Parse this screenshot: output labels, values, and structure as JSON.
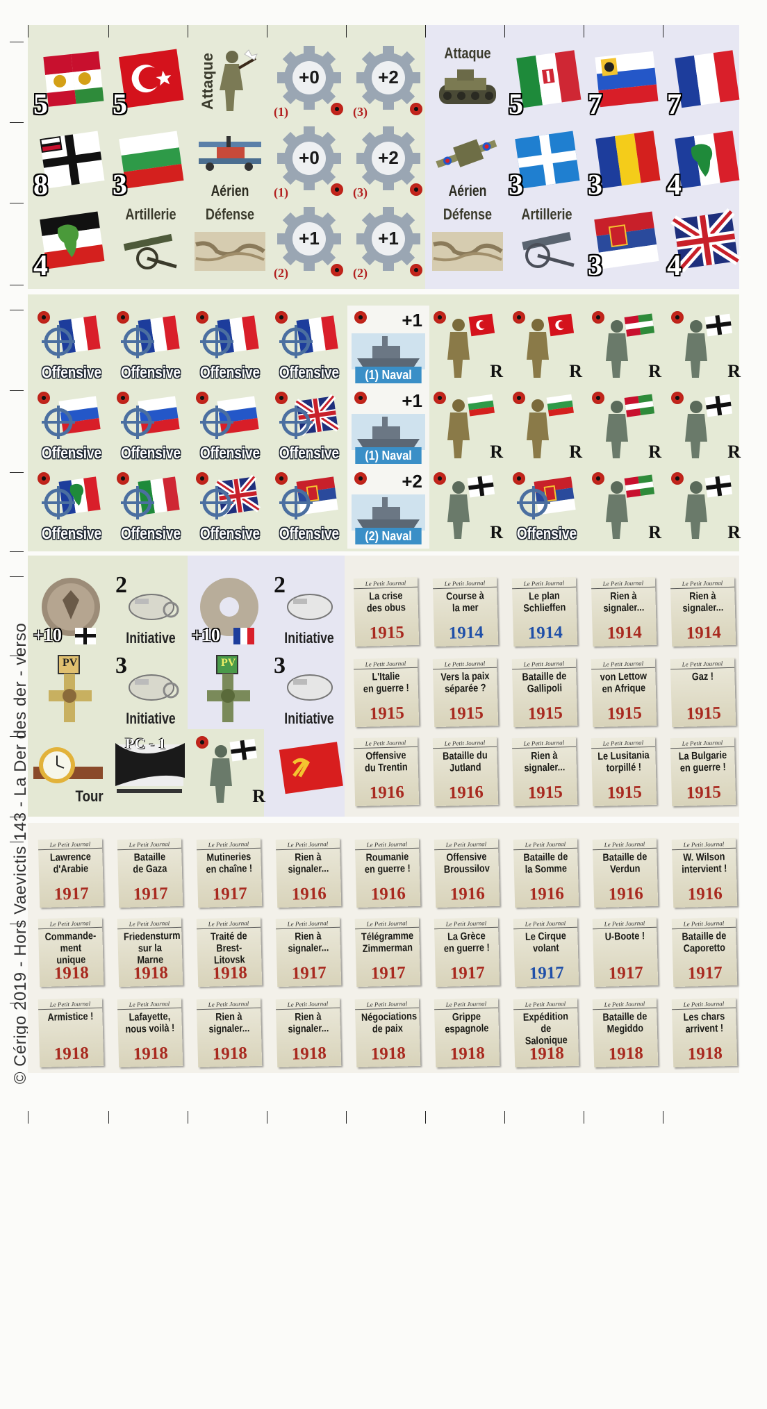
{
  "side_text": "© Cérigo 2019 - Hors Vaevictis 143 - La Der des der - verso",
  "row1": {
    "flag_austria_num": "5",
    "flag_turkey_num": "5",
    "attaque_label": "Attaque",
    "gear1": {
      "val": "+0",
      "sub": "(1)"
    },
    "gear2": {
      "val": "+2",
      "sub": "(3)"
    },
    "tank_label": "Attaque",
    "flag_italy_num": "5",
    "flag_russia_num": "7",
    "flag_france_num": "7"
  },
  "row2": {
    "flag_germany_num": "8",
    "flag_bulgaria_num": "3",
    "aerien_label": "Aérien",
    "gear1": {
      "val": "+0",
      "sub": "(1)"
    },
    "gear2": {
      "val": "+2",
      "sub": "(3)"
    },
    "aerien2_label": "Aérien",
    "flag_greece_num": "3",
    "flag_romania_num": "3",
    "flag_fr_africa_num": "4"
  },
  "row3": {
    "flag_de_africa_num": "4",
    "artillerie_label": "Artillerie",
    "defense_label": "Défense",
    "gear1": {
      "val": "+1",
      "sub": "(2)"
    },
    "gear2": {
      "val": "+1",
      "sub": "(2)"
    },
    "defense2_label": "Défense",
    "artillerie2_label": "Artillerie",
    "flag_serbia_num": "3",
    "flag_uk_num": "4"
  },
  "offensive_label": "Offensive",
  "naval": {
    "n1": {
      "val": "+1",
      "label": "(1)  Naval"
    },
    "n2": {
      "val": "+1",
      "label": "(1)  Naval"
    },
    "n3": {
      "val": "+2",
      "label": "(2)  Naval"
    }
  },
  "reserve_label": "R",
  "misc": {
    "coin1_val": "+10",
    "coin2_val": "+10",
    "init1_num": "2",
    "init2_num": "2",
    "init3_num": "3",
    "init4_num": "3",
    "initiative_label": "Initiative",
    "pv_label": "PV",
    "tour_label": "Tour",
    "pc_label": "PC - 1"
  },
  "news_header": "Le Petit Journal",
  "news": [
    {
      "title": "La crise\ndes obus",
      "year": "1915",
      "blue": false
    },
    {
      "title": "Course à\nla mer",
      "year": "1914",
      "blue": true
    },
    {
      "title": "Le plan\nSchlieffen",
      "year": "1914",
      "blue": true
    },
    {
      "title": "Rien à\nsignaler...",
      "year": "1914",
      "blue": false
    },
    {
      "title": "Rien à\nsignaler...",
      "year": "1914",
      "blue": false
    },
    {
      "title": "L'Italie\nen guerre !",
      "year": "1915",
      "blue": false
    },
    {
      "title": "Vers la paix\nséparée ?",
      "year": "1915",
      "blue": false
    },
    {
      "title": "Bataille de\nGallipoli",
      "year": "1915",
      "blue": false
    },
    {
      "title": "von Lettow\nen Afrique",
      "year": "1915",
      "blue": false
    },
    {
      "title": "Gaz !",
      "year": "1915",
      "blue": false
    },
    {
      "title": "Offensive\ndu Trentin",
      "year": "1916",
      "blue": false
    },
    {
      "title": "Bataille du\nJutland",
      "year": "1916",
      "blue": false
    },
    {
      "title": "Rien à\nsignaler...",
      "year": "1915",
      "blue": false
    },
    {
      "title": "Le Lusitania\ntorpillé !",
      "year": "1915",
      "blue": false
    },
    {
      "title": "La Bulgarie\nen guerre !",
      "year": "1915",
      "blue": false
    },
    {
      "title": "Lawrence\nd'Arabie",
      "year": "1917",
      "blue": false
    },
    {
      "title": "Bataille\nde Gaza",
      "year": "1917",
      "blue": false
    },
    {
      "title": "Mutineries\nen chaîne !",
      "year": "1917",
      "blue": false
    },
    {
      "title": "Rien à\nsignaler...",
      "year": "1916",
      "blue": false
    },
    {
      "title": "Roumanie\nen guerre !",
      "year": "1916",
      "blue": false
    },
    {
      "title": "Offensive\nBroussilov",
      "year": "1916",
      "blue": false
    },
    {
      "title": "Bataille de\nla Somme",
      "year": "1916",
      "blue": false
    },
    {
      "title": "Bataille de\nVerdun",
      "year": "1916",
      "blue": false
    },
    {
      "title": "W. Wilson\nintervient !",
      "year": "1916",
      "blue": false
    },
    {
      "title": "Commande-\nment unique",
      "year": "1918",
      "blue": false
    },
    {
      "title": "Friedensturm\nsur la Marne",
      "year": "1918",
      "blue": false
    },
    {
      "title": "Traité de\nBrest-Litovsk",
      "year": "1918",
      "blue": false
    },
    {
      "title": "Rien à\nsignaler...",
      "year": "1917",
      "blue": false
    },
    {
      "title": "Télégramme\nZimmerman",
      "year": "1917",
      "blue": false
    },
    {
      "title": "La Grèce\nen guerre !",
      "year": "1917",
      "blue": false
    },
    {
      "title": "Le Cirque\nvolant",
      "year": "1917",
      "blue": true
    },
    {
      "title": "U-Boote !",
      "year": "1917",
      "blue": false
    },
    {
      "title": "Bataille de\nCaporetto",
      "year": "1917",
      "blue": false
    },
    {
      "title": "Armistice !",
      "year": "1918",
      "blue": false
    },
    {
      "title": "Lafayette,\nnous voilà !",
      "year": "1918",
      "blue": false
    },
    {
      "title": "Rien à\nsignaler...",
      "year": "1918",
      "blue": false
    },
    {
      "title": "Rien à\nsignaler...",
      "year": "1918",
      "blue": false
    },
    {
      "title": "Négociations\nde paix",
      "year": "1918",
      "blue": false
    },
    {
      "title": "Grippe\nespagnole",
      "year": "1918",
      "blue": false
    },
    {
      "title": "Expédition de\nSalonique",
      "year": "1918",
      "blue": false
    },
    {
      "title": "Bataille de\nMegiddo",
      "year": "1918",
      "blue": false
    },
    {
      "title": "Les chars\narrivent !",
      "year": "1918",
      "blue": false
    }
  ],
  "colors": {
    "green_bg": "#e6ead8",
    "blue_bg": "#e6e6f2",
    "news_bg": "#f3f1ea",
    "red_year": "#a8291f",
    "blue_year": "#1f4fa8"
  }
}
